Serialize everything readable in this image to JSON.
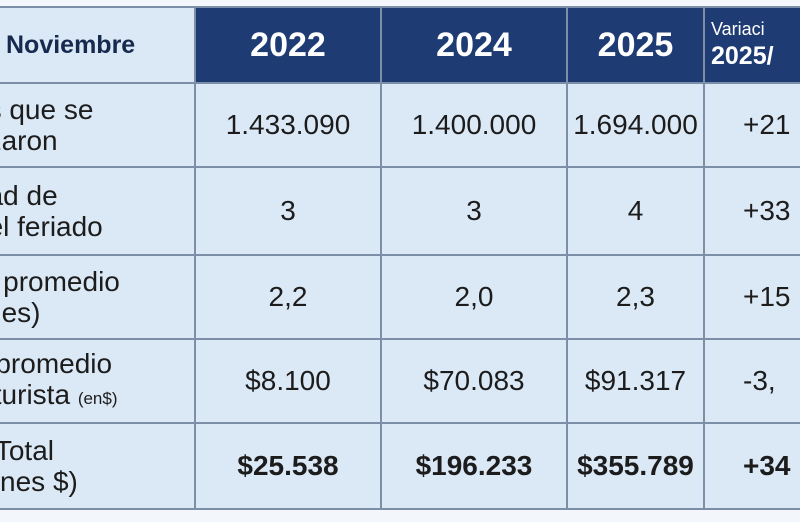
{
  "header": {
    "label": "Noviembre",
    "years": [
      "2022",
      "2024",
      "2025"
    ],
    "variation_line1": "Variaci",
    "variation_line2": "2025/"
  },
  "rows": [
    {
      "label_line1": "as que se",
      "label_line2": "azaron",
      "label_unit": "",
      "values": [
        "1.433.090",
        "1.400.000",
        "1.694.000"
      ],
      "variation": "+21"
    },
    {
      "label_line1": "dad de",
      "label_line2": "del feriado",
      "label_unit": "",
      "values": [
        "3",
        "3",
        "4"
      ],
      "variation": "+33"
    },
    {
      "label_line1": "ía promedio",
      "label_line2": "ches)",
      "label_unit": "",
      "values": [
        "2,2",
        "2,0",
        "2,3"
      ],
      "variation": "+15"
    },
    {
      "label_line1": "o promedio",
      "label_line2": " x turista",
      "label_unit": "(en$)",
      "values": [
        "$8.100",
        "$70.083",
        "$91.317"
      ],
      "variation": "-3,"
    },
    {
      "label_line1": "o Total",
      "label_line2": "llones $)",
      "label_unit": "",
      "values": [
        "$25.538",
        "$196.233",
        "$355.789"
      ],
      "variation": "+34"
    }
  ]
}
